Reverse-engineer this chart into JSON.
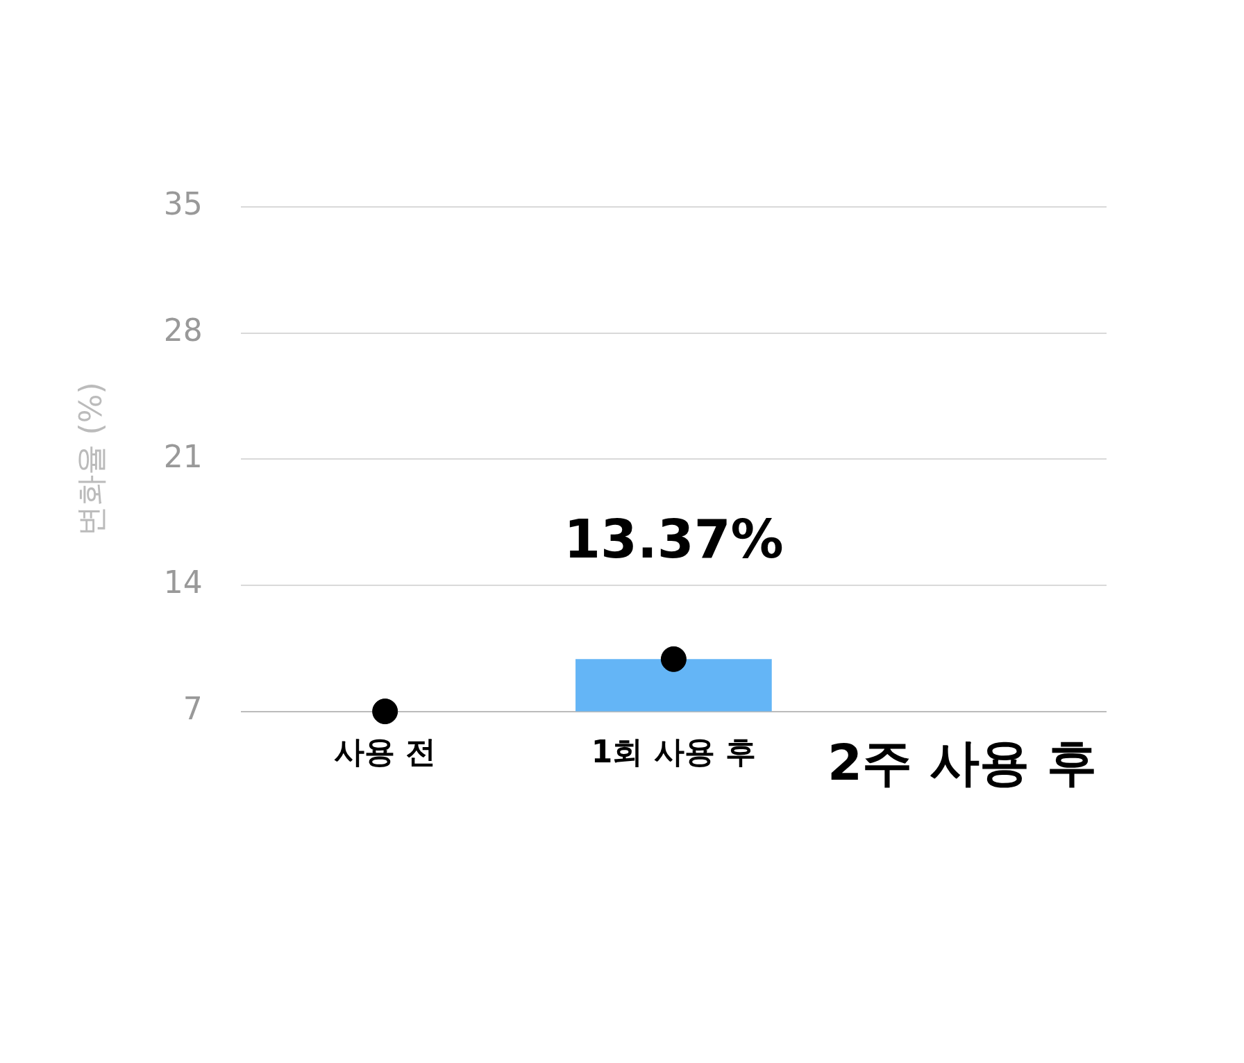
{
  "chart_data": {
    "type": "bar",
    "ylabel": "변화율 (%)",
    "categories": [
      "사용 전",
      "1회 사용 후",
      "2주 사용 후"
    ],
    "series": [
      {
        "color": "#64b5f6",
        "values": [
          null,
          9.9,
          null
        ]
      },
      {
        "type": "scatter",
        "color": "#000000",
        "values": [
          7,
          9.9,
          null
        ],
        "marker": "circle"
      }
    ],
    "ylim": [
      7,
      35
    ],
    "yticks": [
      7,
      14,
      21,
      28,
      35
    ],
    "grid": "y",
    "legend": false,
    "annotations": [
      "13.37%"
    ]
  }
}
